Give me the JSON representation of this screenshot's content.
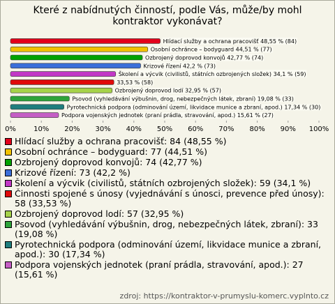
{
  "chart_data": {
    "type": "bar",
    "orientation": "horizontal",
    "title": "Které z nabídnutých činností, podle Vás, může/by mohl kontraktor vykonávat?",
    "categories": [
      "Hlídací služby a ochrana pracovišť",
      "Osobní ochránce – bodyguard",
      "Ozbrojený doprovod konvojů",
      "Krizové řízení",
      "Školení a výcvik (civilistů, státních ozbrojených složek)",
      "Činnosti spojené s únosy (vyjednávání s únosci, prevence před únosy)",
      "Ozbrojený doprovod lodí",
      "Psovod (vyhledávání výbušnin, drog, nebezpečných látek, zbraní)",
      "Pyrotechnická podpora (odminování území, likvidace munice a zbraní, apod.)",
      "Podpora vojenských jednotek (praní prádla, stravování, apod.)"
    ],
    "series": [
      {
        "values": [
          48.55,
          44.51,
          42.77,
          42.2,
          34.1,
          33.53,
          32.95,
          19.08,
          17.34,
          15.61
        ],
        "value_labels": [
          "Hlídací služby a ochrana pracovišť 48,55 % (84)",
          "Osobní ochránce – bodyguard 44,51 % (77)",
          "Ozbrojený doprovod konvojů 42,77 % (74)",
          "Krizové řízení 42,2 % (73)",
          "Školení a výcvik (civilistů, státních ozbrojených složek) 34,1 % (59)",
          "33,53 % (58)",
          "Ozbrojený doprovod lodí 32,95 % (57)",
          "Psovod (vyhledávání výbušnin, drog, nebezpečných látek, zbraní) 19,08 % (33)",
          "Pyrotechnická podpora (odminování území, likvidace munice a zbraní, apod.) 17,34 % (30)",
          "Podpora vojenských jednotek (praní prádla, stravování, apod.) 15,61 % (27)"
        ],
        "colors": [
          "#e3001b",
          "#f2c200",
          "#00a200",
          "#3b6fd9",
          "#c238c6",
          "#e00a0a",
          "#a6d34a",
          "#2ea33a",
          "#1f7e7e",
          "#c55ec5"
        ]
      }
    ],
    "legend_labels": [
      "Hlídací služby a ochrana pracovišť: 84 (48,55 %)",
      "Osobní ochránce – bodyguard: 77 (44,51 %)",
      "Ozbrojený doprovod konvojů: 74 (42,77 %)",
      "Krizové řízení: 73 (42,2 %)",
      "Školení a výcvik (civilistů, státních ozbrojených složek): 59 (34,1 %)",
      "Činnosti spojené s únosy (vyjednávání s únosci, prevence před únosy): 58 (33,53 %)",
      "Ozbrojený doprovod lodí: 57 (32,95 %)",
      "Psovod (vyhledávání výbušnin, drog, nebezpečných látek, zbraní): 33 (19,08 %)",
      "Pyrotechnická podpora (odminování území, likvidace munice a zbraní, apod.): 30 (17,34 %)",
      "Podpora vojenských jednotek (praní prádla, stravování, apod.): 27 (15,61 %)"
    ],
    "xlim": [
      0,
      100
    ],
    "xticks": [
      {
        "value": 0,
        "label": "0%"
      },
      {
        "value": 10,
        "label": "10%"
      },
      {
        "value": 20,
        "label": "20%"
      },
      {
        "value": 30,
        "label": "30%"
      },
      {
        "value": 40,
        "label": "40%"
      },
      {
        "value": 50,
        "label": "50%"
      },
      {
        "value": 60,
        "label": "60%"
      },
      {
        "value": 70,
        "label": "70%"
      },
      {
        "value": 80,
        "label": "80%"
      },
      {
        "value": 90,
        "label": "90%"
      },
      {
        "value": 100,
        "label": "100%"
      }
    ],
    "source": "zdroj: https://kontraktor-v-prumyslu-komerc.vyplnto.cz"
  }
}
